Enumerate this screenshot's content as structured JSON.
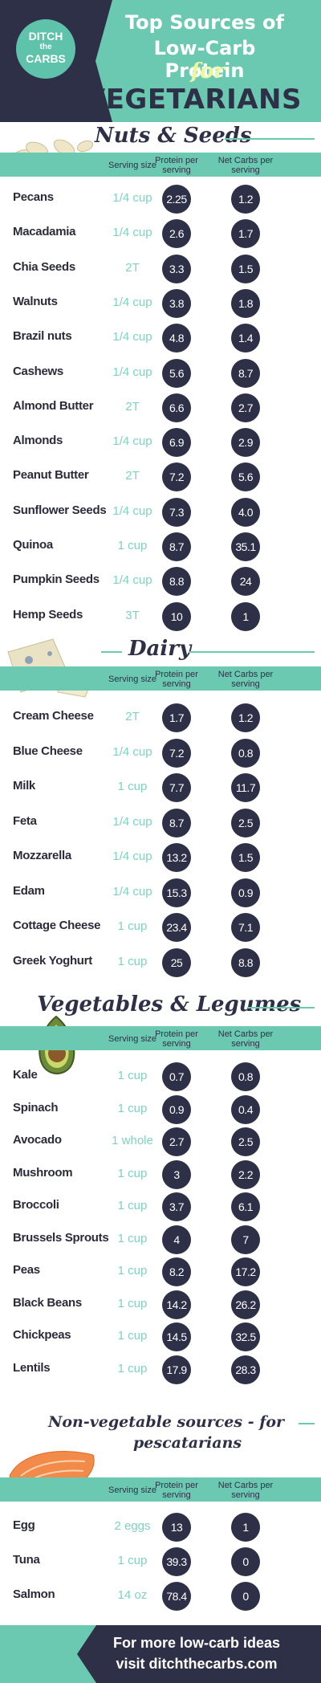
{
  "header": {
    "logo": {
      "line1": "DITCH",
      "line2": "the",
      "line3": "CARBS"
    },
    "title_line1": "Top Sources of",
    "title_line2": "Low-Carb Protein",
    "title_for": "for",
    "title_line3": "VEGETARIANS"
  },
  "columns": {
    "serving": "Serving size",
    "protein": "Protein per serving",
    "carbs": "Net Carbs per serving"
  },
  "sections": [
    {
      "title": "Nuts & Seeds",
      "rows": [
        {
          "name": "Pecans",
          "serving": "1/4 cup",
          "protein": "2.25",
          "carbs": "1.2"
        },
        {
          "name": "Macadamia",
          "serving": "1/4 cup",
          "protein": "2.6",
          "carbs": "1.7"
        },
        {
          "name": "Chia Seeds",
          "serving": "2T",
          "protein": "3.3",
          "carbs": "1.5"
        },
        {
          "name": "Walnuts",
          "serving": "1/4 cup",
          "protein": "3.8",
          "carbs": "1.8"
        },
        {
          "name": "Brazil nuts",
          "serving": "1/4 cup",
          "protein": "4.8",
          "carbs": "1.4"
        },
        {
          "name": "Cashews",
          "serving": "1/4 cup",
          "protein": "5.6",
          "carbs": "8.7"
        },
        {
          "name": "Almond Butter",
          "serving": "2T",
          "protein": "6.6",
          "carbs": "2.7"
        },
        {
          "name": "Almonds",
          "serving": "1/4 cup",
          "protein": "6.9",
          "carbs": "2.9"
        },
        {
          "name": "Peanut Butter",
          "serving": "2T",
          "protein": "7.2",
          "carbs": "5.6"
        },
        {
          "name": "Sunflower Seeds",
          "serving": "1/4 cup",
          "protein": "7.3",
          "carbs": "4.0"
        },
        {
          "name": "Quinoa",
          "serving": "1 cup",
          "protein": "8.7",
          "carbs": "35.1"
        },
        {
          "name": "Pumpkin Seeds",
          "serving": "1/4 cup",
          "protein": "8.8",
          "carbs": "24"
        },
        {
          "name": "Hemp Seeds",
          "serving": "3T",
          "protein": "10",
          "carbs": "1"
        }
      ]
    },
    {
      "title": "Dairy",
      "rows": [
        {
          "name": "Cream Cheese",
          "serving": "2T",
          "protein": "1.7",
          "carbs": "1.2"
        },
        {
          "name": "Blue Cheese",
          "serving": "1/4 cup",
          "protein": "7.2",
          "carbs": "0.8"
        },
        {
          "name": "Milk",
          "serving": "1 cup",
          "protein": "7.7",
          "carbs": "11.7"
        },
        {
          "name": "Feta",
          "serving": "1/4 cup",
          "protein": "8.7",
          "carbs": "2.5"
        },
        {
          "name": "Mozzarella",
          "serving": "1/4 cup",
          "protein": "13.2",
          "carbs": "1.5"
        },
        {
          "name": "Edam",
          "serving": "1/4 cup",
          "protein": "15.3",
          "carbs": "0.9"
        },
        {
          "name": "Cottage Cheese",
          "serving": "1 cup",
          "protein": "23.4",
          "carbs": "7.1"
        },
        {
          "name": "Greek Yoghurt",
          "serving": "1 cup",
          "protein": "25",
          "carbs": "8.8"
        }
      ]
    },
    {
      "title": "Vegetables & Legumes",
      "rows": [
        {
          "name": "Kale",
          "serving": "1 cup",
          "protein": "0.7",
          "carbs": "0.8"
        },
        {
          "name": "Spinach",
          "serving": "1 cup",
          "protein": "0.9",
          "carbs": "0.4"
        },
        {
          "name": "Avocado",
          "serving": "1 whole",
          "protein": "2.7",
          "carbs": "2.5"
        },
        {
          "name": "Mushroom",
          "serving": "1 cup",
          "protein": "3",
          "carbs": "2.2"
        },
        {
          "name": "Broccoli",
          "serving": "1 cup",
          "protein": "3.7",
          "carbs": "6.1"
        },
        {
          "name": "Brussels Sprouts",
          "serving": "1 cup",
          "protein": "4",
          "carbs": "7"
        },
        {
          "name": "Peas",
          "serving": "1 cup",
          "protein": "8.2",
          "carbs": "17.2"
        },
        {
          "name": "Black Beans",
          "serving": "1 cup",
          "protein": "14.2",
          "carbs": "26.2"
        },
        {
          "name": "Chickpeas",
          "serving": "1 cup",
          "protein": "14.5",
          "carbs": "32.5"
        },
        {
          "name": "Lentils",
          "serving": "1 cup",
          "protein": "17.9",
          "carbs": "28.3"
        }
      ]
    },
    {
      "title": "Non-vegetable sources - for pescatarians",
      "title_line1": "Non-vegetable sources - for",
      "title_line2": "pescatarians",
      "rows": [
        {
          "name": "Egg",
          "serving": "2 eggs",
          "protein": "13",
          "carbs": "1"
        },
        {
          "name": "Tuna",
          "serving": "1 cup",
          "protein": "39.3",
          "carbs": "0"
        },
        {
          "name": "Salmon",
          "serving": "14 oz",
          "protein": "78.4",
          "carbs": "0"
        }
      ]
    }
  ],
  "footer": {
    "line1": "For more low-carb ideas",
    "line2": "visit ditchthecarbs.com"
  },
  "colors": {
    "navy": "#2e3047",
    "mint": "#6cc9b1",
    "serving_text": "#7ed3bf",
    "for_accent": "#e8f7a0"
  }
}
